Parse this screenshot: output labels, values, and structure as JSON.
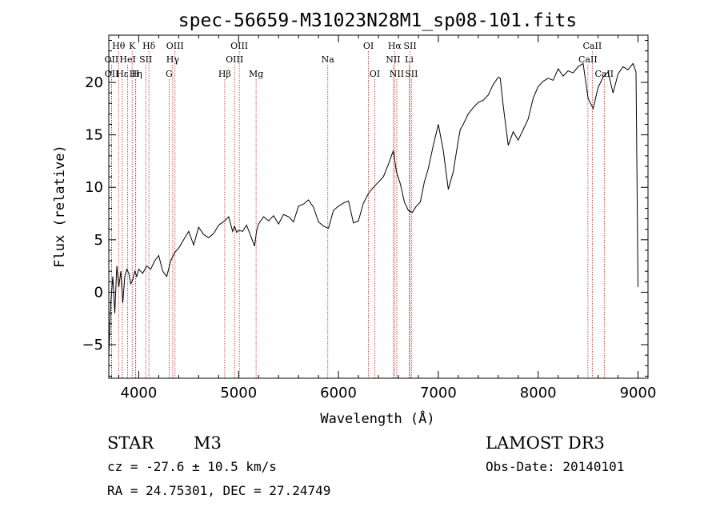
{
  "chart_data": {
    "type": "line",
    "title": "spec-56659-M31023N28M1_sp08-101.fits",
    "xlabel": "Wavelength (Å)",
    "ylabel": "Flux (relative)",
    "xlim": [
      3700,
      9100
    ],
    "ylim": [
      -8.2,
      24.5
    ],
    "xticks": [
      4000,
      5000,
      6000,
      7000,
      8000,
      9000
    ],
    "yticks": [
      -5,
      0,
      5,
      10,
      15,
      20
    ],
    "line_color": "#000000",
    "marker_color": "#cc2222",
    "series": [
      {
        "name": "flux",
        "x": [
          3700,
          3720,
          3740,
          3760,
          3780,
          3800,
          3820,
          3840,
          3860,
          3880,
          3900,
          3920,
          3940,
          3960,
          3980,
          4000,
          4040,
          4080,
          4120,
          4160,
          4200,
          4240,
          4280,
          4320,
          4360,
          4400,
          4450,
          4500,
          4550,
          4600,
          4650,
          4700,
          4750,
          4800,
          4860,
          4900,
          4940,
          4960,
          4980,
          5000,
          5040,
          5080,
          5120,
          5160,
          5180,
          5200,
          5250,
          5300,
          5350,
          5400,
          5450,
          5500,
          5550,
          5600,
          5650,
          5700,
          5750,
          5800,
          5850,
          5900,
          5950,
          6000,
          6050,
          6100,
          6150,
          6200,
          6250,
          6300,
          6350,
          6400,
          6450,
          6500,
          6550,
          6580,
          6620,
          6660,
          6700,
          6740,
          6780,
          6820,
          6860,
          6900,
          6950,
          7000,
          7050,
          7100,
          7150,
          7200,
          7220,
          7250,
          7300,
          7350,
          7400,
          7450,
          7500,
          7550,
          7600,
          7620,
          7650,
          7700,
          7750,
          7800,
          7850,
          7900,
          7950,
          8000,
          8050,
          8100,
          8150,
          8200,
          8250,
          8300,
          8350,
          8400,
          8450,
          8500,
          8550,
          8600,
          8650,
          8700,
          8750,
          8800,
          8850,
          8900,
          8950,
          8980,
          9000
        ],
        "y": [
          -6,
          -1,
          1.5,
          -2,
          2.5,
          0.5,
          2,
          -1,
          1.5,
          2.2,
          1.8,
          0.8,
          1.2,
          2,
          1.5,
          2.2,
          1.8,
          2.5,
          2.2,
          3,
          3.5,
          2,
          1.5,
          3,
          3.8,
          4.2,
          5,
          5.8,
          4.5,
          6.2,
          5.5,
          5.2,
          5.6,
          6.4,
          6.8,
          7.2,
          5.8,
          6.3,
          5.7,
          5.9,
          5.8,
          6.4,
          5.4,
          4.4,
          5.8,
          6.5,
          7.2,
          6.8,
          7.3,
          6.5,
          7.4,
          7.2,
          6.7,
          8.2,
          8.4,
          8.8,
          8.1,
          6.7,
          6.3,
          6.1,
          7.8,
          8.2,
          8.5,
          8.7,
          6.6,
          6.8,
          8.5,
          9.4,
          10,
          10.5,
          11,
          12.2,
          13.5,
          11.5,
          10.3,
          8.6,
          7.8,
          7.6,
          8.2,
          8.6,
          10.5,
          11.8,
          14,
          16,
          13.5,
          9.8,
          11.5,
          14.5,
          15.5,
          16,
          17,
          17.6,
          18.1,
          18.3,
          18.8,
          19.8,
          20.5,
          20.4,
          17.8,
          14,
          15.3,
          14.5,
          15.5,
          16.5,
          18.5,
          19.6,
          20.1,
          20.4,
          20.2,
          21.3,
          20.6,
          21.1,
          20.9,
          21.5,
          21.8,
          18.5,
          17.5,
          19.5,
          20.5,
          21,
          19,
          20.8,
          21.5,
          21.2,
          21.8,
          21,
          0.5
        ]
      }
    ],
    "line_markers": [
      {
        "label": "Hθ",
        "x": 3798,
        "row": 1
      },
      {
        "label": "K",
        "x": 3934,
        "row": 1
      },
      {
        "label": "Hδ",
        "x": 4102,
        "row": 1
      },
      {
        "label": "OIII",
        "x": 4363,
        "row": 1
      },
      {
        "label": "OIII",
        "x": 5007,
        "row": 1
      },
      {
        "label": "OI",
        "x": 6300,
        "row": 1
      },
      {
        "label": "Hα",
        "x": 6563,
        "row": 1
      },
      {
        "label": "SII",
        "x": 6717,
        "row": 1
      },
      {
        "label": "CaII",
        "x": 8542,
        "row": 1
      },
      {
        "label": "OII",
        "x": 3727,
        "row": 2
      },
      {
        "label": "HeI",
        "x": 3889,
        "row": 2
      },
      {
        "label": "SII",
        "x": 4070,
        "row": 2
      },
      {
        "label": "Hγ",
        "x": 4340,
        "row": 2
      },
      {
        "label": "OIII",
        "x": 4959,
        "row": 2
      },
      {
        "label": "Na",
        "x": 5893,
        "row": 2
      },
      {
        "label": "NII",
        "x": 6548,
        "row": 2
      },
      {
        "label": "Li",
        "x": 6708,
        "row": 2
      },
      {
        "label": "CaII",
        "x": 8498,
        "row": 2
      },
      {
        "label": "OII",
        "x": 3729,
        "row": 3
      },
      {
        "label": "Hε",
        "x": 3835,
        "row": 3
      },
      {
        "label": "Hη",
        "x": 3970,
        "row": 3
      },
      {
        "label": "H",
        "x": 3968,
        "row": 3
      },
      {
        "label": "G",
        "x": 4304,
        "row": 3
      },
      {
        "label": "Hβ",
        "x": 4861,
        "row": 3
      },
      {
        "label": "Mg",
        "x": 5175,
        "row": 3
      },
      {
        "label": "OI",
        "x": 6363,
        "row": 3
      },
      {
        "label": "NII",
        "x": 6584,
        "row": 3
      },
      {
        "label": "SII",
        "x": 6731,
        "row": 3
      },
      {
        "label": "CaII",
        "x": 8662,
        "row": 3
      }
    ]
  },
  "info": {
    "object_class": "STAR",
    "subclass": "M3",
    "survey": "LAMOST DR3",
    "redshift_line": "cz = -27.6 ± 10.5 km/s",
    "obs_date": "Obs-Date: 20140101",
    "coords_line": "RA =  24.75301, DEC =  27.24749"
  }
}
